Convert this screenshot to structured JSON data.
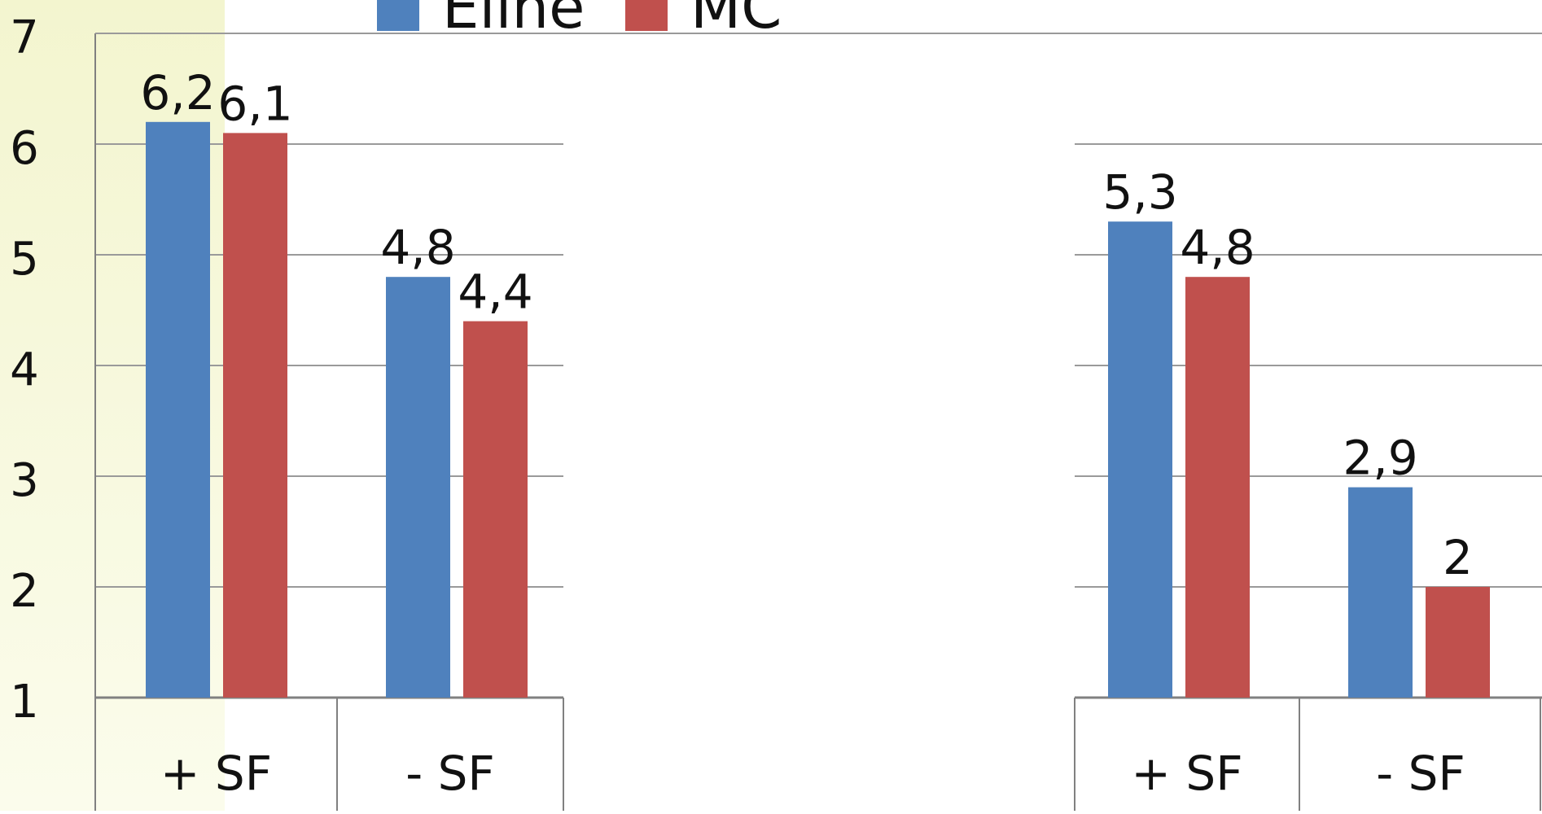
{
  "chart_data": {
    "type": "bar",
    "ylim": [
      1,
      7
    ],
    "y_ticks": [
      "1",
      "2",
      "3",
      "4",
      "5",
      "6",
      "7"
    ],
    "grid": true,
    "legend": {
      "position": "top-center",
      "entries": [
        "Eline",
        "MC"
      ]
    },
    "colors": {
      "Eline": "#4F81BD",
      "MC": "#C0504D",
      "grid": "#9a9a9a",
      "highlight": "#f4f6d2"
    },
    "panels": [
      {
        "categories": [
          "+ SF",
          "- SF"
        ],
        "series": [
          {
            "name": "Eline",
            "values": [
              6.2,
              4.8
            ],
            "labels": [
              "6,2",
              "4,8"
            ]
          },
          {
            "name": "MC",
            "values": [
              6.1,
              4.4
            ],
            "labels": [
              "6,1",
              "4,4"
            ]
          }
        ]
      },
      {
        "categories": [
          "+ SF",
          "- SF"
        ],
        "series": [
          {
            "name": "Eline",
            "values": [
              5.3,
              2.9
            ],
            "labels": [
              "5,3",
              "2,9"
            ]
          },
          {
            "name": "MC",
            "values": [
              4.8,
              2
            ],
            "labels": [
              "4,8",
              "2"
            ]
          }
        ]
      }
    ]
  }
}
